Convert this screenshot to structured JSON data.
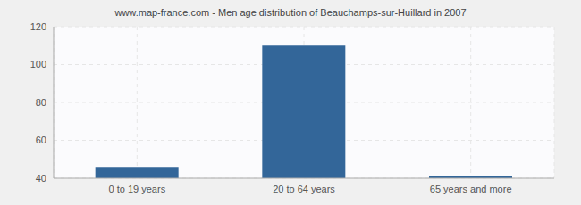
{
  "chart_data": {
    "type": "bar",
    "title": "www.map-france.com - Men age distribution of Beauchamps-sur-Huillard in 2007",
    "categories": [
      "0 to 19 years",
      "20 to 64 years",
      "65 years and more"
    ],
    "values": [
      46,
      110,
      41
    ],
    "color": "#336699",
    "ylim": [
      40,
      120
    ],
    "yticks": [
      40,
      60,
      80,
      100,
      120
    ],
    "grid": true
  }
}
